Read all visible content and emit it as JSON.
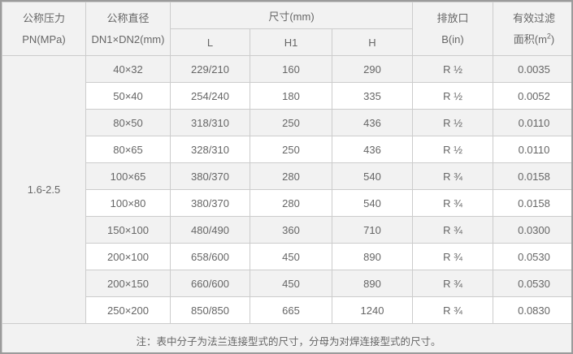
{
  "table": {
    "header": {
      "pressure_line1": "公称压力",
      "pressure_line2": "PN(MPa)",
      "diameter_line1": "公称直径",
      "diameter_line2": "DN1×DN2(mm)",
      "size_group": "尺寸(mm)",
      "col_l": "L",
      "col_h1": "H1",
      "col_h": "H",
      "drain_line1": "排放口",
      "drain_line2": "B(in)",
      "area_line1": "有效过滤",
      "area_line2_prefix": "面积(m",
      "area_line2_sup": "2",
      "area_line2_suffix": ")"
    },
    "pressure_value": "1.6-2.5",
    "rows": [
      {
        "dn": "40×32",
        "l": "229/210",
        "h1": "160",
        "h": "290",
        "b": "R ½",
        "area": "0.0035"
      },
      {
        "dn": "50×40",
        "l": "254/240",
        "h1": "180",
        "h": "335",
        "b": "R ½",
        "area": "0.0052"
      },
      {
        "dn": "80×50",
        "l": "318/310",
        "h1": "250",
        "h": "436",
        "b": "R ½",
        "area": "0.0110"
      },
      {
        "dn": "80×65",
        "l": "328/310",
        "h1": "250",
        "h": "436",
        "b": "R ½",
        "area": "0.0110"
      },
      {
        "dn": "100×65",
        "l": "380/370",
        "h1": "280",
        "h": "540",
        "b": "R ¾",
        "area": "0.0158"
      },
      {
        "dn": "100×80",
        "l": "380/370",
        "h1": "280",
        "h": "540",
        "b": "R ¾",
        "area": "0.0158"
      },
      {
        "dn": "150×100",
        "l": "480/490",
        "h1": "360",
        "h": "710",
        "b": "R ¾",
        "area": "0.0300"
      },
      {
        "dn": "200×100",
        "l": "658/600",
        "h1": "450",
        "h": "890",
        "b": "R ¾",
        "area": "0.0530"
      },
      {
        "dn": "200×150",
        "l": "660/600",
        "h1": "450",
        "h": "890",
        "b": "R ¾",
        "area": "0.0530"
      },
      {
        "dn": "250×200",
        "l": "850/850",
        "h1": "665",
        "h": "1240",
        "b": "R ¾",
        "area": "0.0830"
      }
    ],
    "note": "注：表中分子为法兰连接型式的尺寸，分母为对焊连接型式的尺寸。",
    "colors": {
      "header_bg": "#f2f2f2",
      "stripe_bg": "#f2f2f2",
      "row_bg": "#ffffff",
      "inner_border": "#cccccc",
      "outer_border": "#9b9b9b",
      "text": "#666666"
    }
  }
}
